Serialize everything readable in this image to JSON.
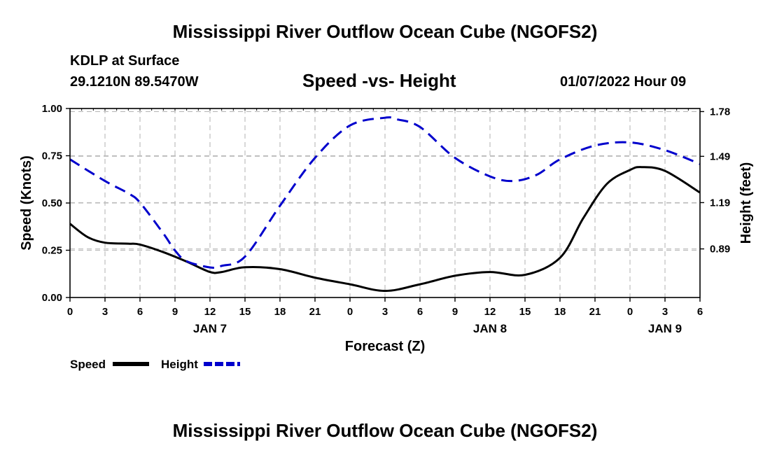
{
  "chart_data": {
    "type": "line",
    "title": "Mississippi River Outflow Ocean Cube (NGOFS2)",
    "footer_title": "Mississippi River Outflow Ocean Cube (NGOFS2)",
    "station": "KDLP at Surface",
    "location": "29.1210N  89.5470W",
    "subtitle": "Speed -vs- Height",
    "datetime": "01/07/2022 Hour 09",
    "xlabel": "Forecast (Z)",
    "ylabel": "Speed (Knots)",
    "y2label": "Height (feet)",
    "xlim": [
      0,
      54
    ],
    "ylim": [
      0,
      1
    ],
    "y2lim": [
      0.575,
      1.8
    ],
    "x_tick_labels": [
      "0",
      "3",
      "6",
      "9",
      "12",
      "15",
      "18",
      "21",
      "0",
      "3",
      "6",
      "9",
      "12",
      "15",
      "18",
      "21",
      "0",
      "3",
      "6"
    ],
    "date_labels": [
      {
        "label": "JAN 7",
        "x": 12
      },
      {
        "label": "JAN 8",
        "x": 36
      },
      {
        "label": "JAN 9",
        "x": 51
      }
    ],
    "y_ticks": [
      {
        "value": 0.0,
        "label": "0.00"
      },
      {
        "value": 0.25,
        "label": "0.25"
      },
      {
        "value": 0.5,
        "label": "0.50"
      },
      {
        "value": 0.75,
        "label": "0.75"
      },
      {
        "value": 1.0,
        "label": "1.00"
      }
    ],
    "y2_ticks": [
      {
        "value": 0.89,
        "label": "0.89"
      },
      {
        "value": 1.19,
        "label": "1.19"
      },
      {
        "value": 1.49,
        "label": "1.49"
      },
      {
        "value": 1.78,
        "label": "1.78"
      }
    ],
    "grid": true,
    "series": [
      {
        "name": "Speed",
        "axis": "left",
        "color": "#000000",
        "style": "solid",
        "x": [
          0,
          1.5,
          3,
          5,
          6,
          8,
          10,
          12,
          13,
          15,
          18,
          21,
          24,
          27,
          30,
          33,
          36,
          39,
          42,
          44,
          46,
          48,
          49,
          51,
          54
        ],
        "values": [
          0.39,
          0.32,
          0.29,
          0.285,
          0.28,
          0.24,
          0.19,
          0.135,
          0.135,
          0.16,
          0.15,
          0.105,
          0.07,
          0.035,
          0.07,
          0.115,
          0.135,
          0.12,
          0.21,
          0.42,
          0.6,
          0.675,
          0.69,
          0.67,
          0.555
        ]
      },
      {
        "name": "Height",
        "axis": "right",
        "color": "#0000cc",
        "style": "dashed",
        "x": [
          0,
          3,
          5,
          6,
          8,
          9,
          10,
          12,
          13,
          15,
          18,
          21,
          24,
          27,
          28,
          30,
          33,
          36,
          38,
          40,
          42,
          45,
          48,
          51,
          54
        ],
        "values": [
          1.47,
          1.33,
          1.25,
          1.19,
          0.99,
          0.88,
          0.81,
          0.77,
          0.78,
          0.84,
          1.17,
          1.48,
          1.69,
          1.74,
          1.73,
          1.68,
          1.48,
          1.36,
          1.33,
          1.37,
          1.47,
          1.56,
          1.58,
          1.53,
          1.44
        ]
      }
    ],
    "legend": {
      "position": "bottom-left",
      "items": [
        {
          "label": "Speed",
          "color": "#000000",
          "style": "solid"
        },
        {
          "label": "Height",
          "color": "#0000cc",
          "style": "dashed"
        }
      ]
    }
  }
}
